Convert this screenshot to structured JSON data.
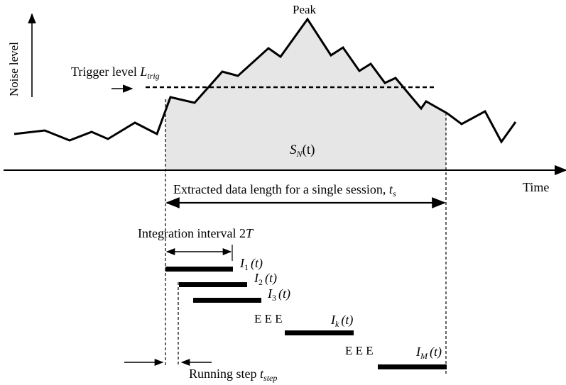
{
  "labels": {
    "y_axis": "Noise level",
    "x_axis": "Time",
    "peak": "Peak",
    "trigger_prefix": "Trigger level ",
    "trigger_sym": "L",
    "trigger_sub": "trig",
    "area_sym": "S",
    "area_sub": "N",
    "area_arg": "(t)",
    "extract_text": "Extracted data length for a single session, ",
    "extract_sym": "t",
    "extract_sub": "s",
    "integration_text": "Integration interval 2",
    "integration_sym": "T",
    "running_text": "Running step ",
    "running_sym": "t",
    "running_sub": "step",
    "ellipsis_1": "E E E",
    "ellipsis_2": "E E E"
  },
  "intervals": [
    {
      "sym": "I",
      "sub": "1",
      "arg": "(t)"
    },
    {
      "sym": "I",
      "sub": "2",
      "arg": "(t)"
    },
    {
      "sym": "I",
      "sub": "3",
      "arg": "(t)"
    },
    {
      "sym": "I",
      "sub": "k",
      "arg": "(t)"
    },
    {
      "sym": "I",
      "sub": "M",
      "arg": "(t)"
    }
  ],
  "colors": {
    "fill": "#e6e6e6",
    "line": "#000000"
  }
}
